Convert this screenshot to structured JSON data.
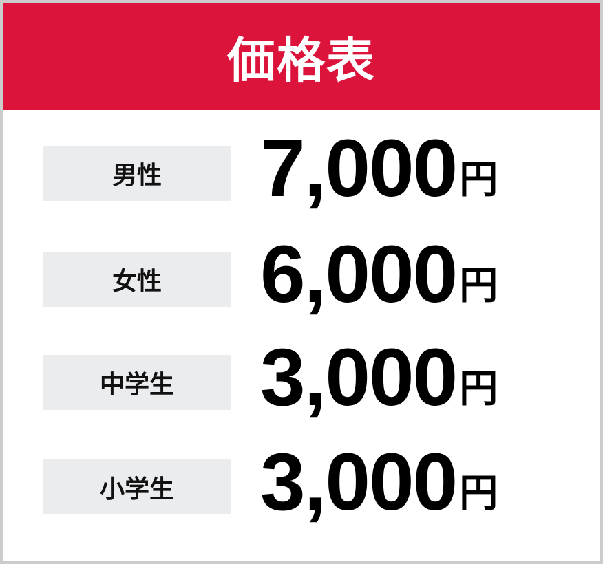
{
  "title": "価格表",
  "colors": {
    "header": "#dc143c",
    "label_bg": "#ebecee",
    "border": "#cccccc"
  },
  "rows": [
    {
      "label": "男性",
      "price": "7,000",
      "unit": "円"
    },
    {
      "label": "女性",
      "price": "6,000",
      "unit": "円"
    },
    {
      "label": "中学生",
      "price": "3,000",
      "unit": "円"
    },
    {
      "label": "小学生",
      "price": "3,000",
      "unit": "円"
    }
  ]
}
